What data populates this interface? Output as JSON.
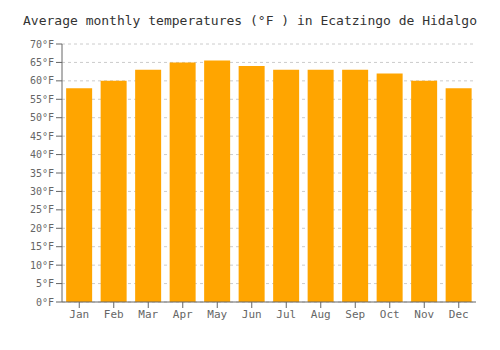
{
  "chart_data": {
    "type": "bar",
    "title": "Average monthly temperatures (°F ) in Ecatzingo de Hidalgo",
    "categories": [
      "Jan",
      "Feb",
      "Mar",
      "Apr",
      "May",
      "Jun",
      "Jul",
      "Aug",
      "Sep",
      "Oct",
      "Nov",
      "Dec"
    ],
    "values": [
      58,
      60,
      63,
      65,
      65.5,
      64,
      63,
      63,
      63,
      62,
      60,
      58
    ],
    "color": "#FFA500",
    "ylim": [
      0,
      70
    ],
    "yticks": [
      {
        "value": 0,
        "label": "0°F"
      },
      {
        "value": 5,
        "label": "5°F"
      },
      {
        "value": 10,
        "label": "10°F"
      },
      {
        "value": 15,
        "label": "15°F"
      },
      {
        "value": 20,
        "label": "20°F"
      },
      {
        "value": 25,
        "label": "25°F"
      },
      {
        "value": 30,
        "label": "30°F"
      },
      {
        "value": 35,
        "label": "35°F"
      },
      {
        "value": 40,
        "label": "40°F"
      },
      {
        "value": 45,
        "label": "45°F"
      },
      {
        "value": 50,
        "label": "50°F"
      },
      {
        "value": 55,
        "label": "55°F"
      },
      {
        "value": 60,
        "label": "60°F"
      },
      {
        "value": 65,
        "label": "65°F"
      },
      {
        "value": 70,
        "label": "70°F"
      }
    ],
    "grid": true
  }
}
